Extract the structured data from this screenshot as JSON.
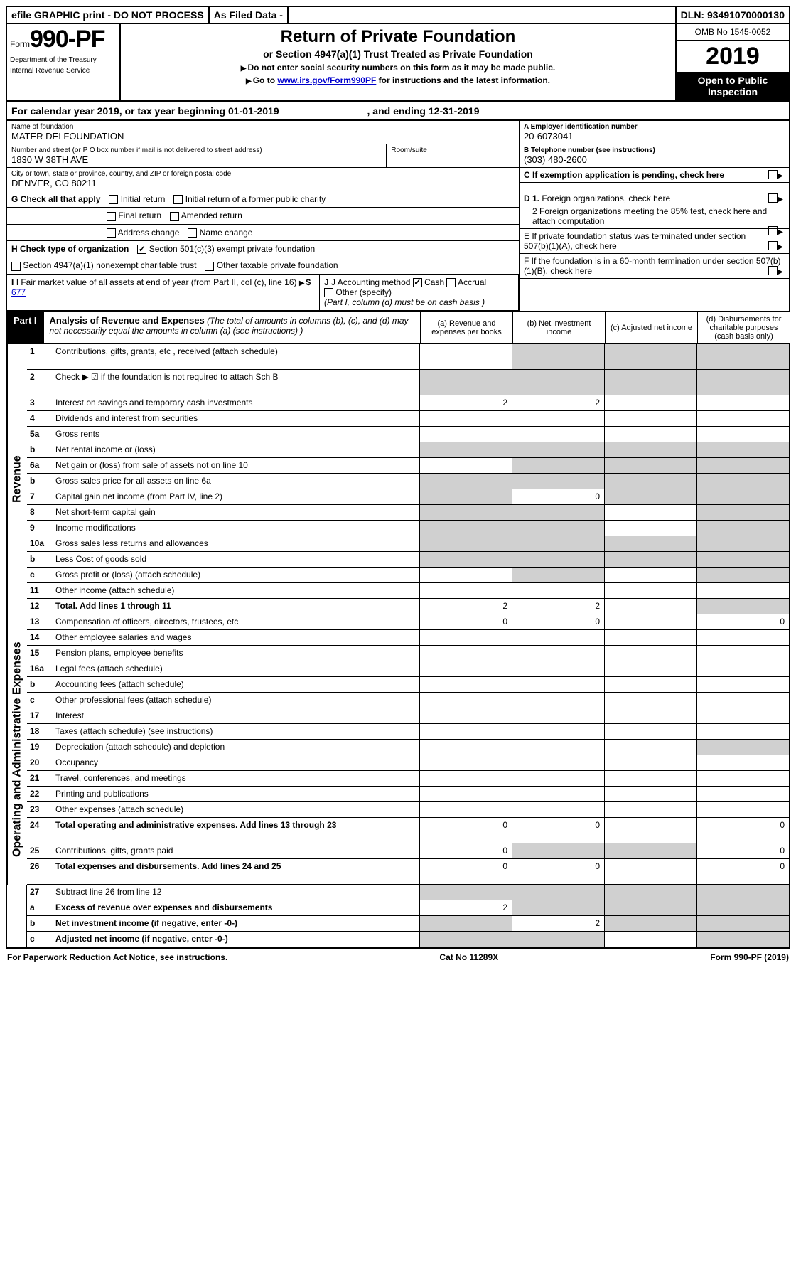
{
  "topbar": {
    "efile": "efile GRAPHIC print - DO NOT PROCESS",
    "asfiled": "As Filed Data -",
    "dln_label": "DLN:",
    "dln": "93491070000130"
  },
  "header": {
    "form_prefix": "Form",
    "form_number": "990-PF",
    "dept1": "Department of the Treasury",
    "dept2": "Internal Revenue Service",
    "title": "Return of Private Foundation",
    "subtitle": "or Section 4947(a)(1) Trust Treated as Private Foundation",
    "instr1": "Do not enter social security numbers on this form as it may be made public.",
    "instr2_prefix": "Go to ",
    "instr2_link": "www.irs.gov/Form990PF",
    "instr2_suffix": " for instructions and the latest information.",
    "omb": "OMB No 1545-0052",
    "year": "2019",
    "open": "Open to Public Inspection"
  },
  "calyear": {
    "text": "For calendar year 2019, or tax year beginning 01-01-2019",
    "mid": ", and ending ",
    "end": "12-31-2019"
  },
  "entity": {
    "name_lbl": "Name of foundation",
    "name": "MATER DEI FOUNDATION",
    "addr_lbl": "Number and street (or P O  box number if mail is not delivered to street address)",
    "addr": "1830 W 38TH AVE",
    "room_lbl": "Room/suite",
    "city_lbl": "City or town, state or province, country, and ZIP or foreign postal code",
    "city": "DENVER, CO  80211",
    "ein_lbl": "A Employer identification number",
    "ein": "20-6073041",
    "tel_lbl": "B Telephone number (see instructions)",
    "tel": "(303) 480-2600",
    "c_lbl": "C If exemption application is pending, check here"
  },
  "checks": {
    "g_lbl": "G Check all that apply",
    "g1": "Initial return",
    "g2": "Initial return of a former public charity",
    "g3": "Final return",
    "g4": "Amended return",
    "g5": "Address change",
    "g6": "Name change",
    "h_lbl": "H Check type of organization",
    "h1": "Section 501(c)(3) exempt private foundation",
    "h2": "Section 4947(a)(1) nonexempt charitable trust",
    "h3": "Other taxable private foundation",
    "i_lbl": "I Fair market value of all assets at end of year (from Part II, col  (c), line 16) ",
    "i_prefix": "$",
    "i_val": "677",
    "j_lbl": "J Accounting method",
    "j1": "Cash",
    "j2": "Accrual",
    "j3": "Other (specify)",
    "j_note": "(Part I, column (d) must be on cash basis )",
    "d_lbl": "D 1. Foreign organizations, check here",
    "d2": "2  Foreign organizations meeting the 85% test, check here and attach computation",
    "e_lbl": "E  If private foundation status was terminated under section 507(b)(1)(A), check here",
    "f_lbl": "F  If the foundation is in a 60-month termination under section 507(b)(1)(B), check here"
  },
  "part1": {
    "label": "Part I",
    "title": "Analysis of Revenue and Expenses",
    "note": "(The total of amounts in columns (b), (c), and (d) may not necessarily equal the amounts in column (a) (see instructions) )",
    "col_a": "(a)   Revenue and expenses per books",
    "col_b": "(b)  Net investment income",
    "col_c": "(c)  Adjusted net income",
    "col_d": "(d)  Disbursements for charitable purposes (cash basis only)"
  },
  "revenue_label": "Revenue",
  "expenses_label": "Operating and Administrative Expenses",
  "rows": {
    "r1": {
      "n": "1",
      "d": "Contributions, gifts, grants, etc , received (attach schedule)"
    },
    "r2": {
      "n": "2",
      "d": "Check ▶ ☑ if the foundation is not required to attach Sch  B"
    },
    "r3": {
      "n": "3",
      "d": "Interest on savings and temporary cash investments",
      "a": "2",
      "b": "2"
    },
    "r4": {
      "n": "4",
      "d": "Dividends and interest from securities"
    },
    "r5a": {
      "n": "5a",
      "d": "Gross rents"
    },
    "r5b": {
      "n": "b",
      "d": "Net rental income or (loss)"
    },
    "r6a": {
      "n": "6a",
      "d": "Net gain or (loss) from sale of assets not on line 10"
    },
    "r6b": {
      "n": "b",
      "d": "Gross sales price for all assets on line 6a"
    },
    "r7": {
      "n": "7",
      "d": "Capital gain net income (from Part IV, line 2)",
      "b": "0"
    },
    "r8": {
      "n": "8",
      "d": "Net short-term capital gain"
    },
    "r9": {
      "n": "9",
      "d": "Income modifications"
    },
    "r10a": {
      "n": "10a",
      "d": "Gross sales less returns and allowances"
    },
    "r10b": {
      "n": "b",
      "d": "Less  Cost of goods sold"
    },
    "r10c": {
      "n": "c",
      "d": "Gross profit or (loss) (attach schedule)"
    },
    "r11": {
      "n": "11",
      "d": "Other income (attach schedule)"
    },
    "r12": {
      "n": "12",
      "d": "Total. Add lines 1 through 11",
      "a": "2",
      "b": "2"
    },
    "r13": {
      "n": "13",
      "d": "Compensation of officers, directors, trustees, etc",
      "a": "0",
      "b": "0",
      "dd": "0"
    },
    "r14": {
      "n": "14",
      "d": "Other employee salaries and wages"
    },
    "r15": {
      "n": "15",
      "d": "Pension plans, employee benefits"
    },
    "r16a": {
      "n": "16a",
      "d": "Legal fees (attach schedule)"
    },
    "r16b": {
      "n": "b",
      "d": "Accounting fees (attach schedule)"
    },
    "r16c": {
      "n": "c",
      "d": "Other professional fees (attach schedule)"
    },
    "r17": {
      "n": "17",
      "d": "Interest"
    },
    "r18": {
      "n": "18",
      "d": "Taxes (attach schedule) (see instructions)"
    },
    "r19": {
      "n": "19",
      "d": "Depreciation (attach schedule) and depletion"
    },
    "r20": {
      "n": "20",
      "d": "Occupancy"
    },
    "r21": {
      "n": "21",
      "d": "Travel, conferences, and meetings"
    },
    "r22": {
      "n": "22",
      "d": "Printing and publications"
    },
    "r23": {
      "n": "23",
      "d": "Other expenses (attach schedule)"
    },
    "r24": {
      "n": "24",
      "d": "Total operating and administrative expenses. Add lines 13 through 23",
      "a": "0",
      "b": "0",
      "dd": "0"
    },
    "r25": {
      "n": "25",
      "d": "Contributions, gifts, grants paid",
      "a": "0",
      "dd": "0"
    },
    "r26": {
      "n": "26",
      "d": "Total expenses and disbursements. Add lines 24 and 25",
      "a": "0",
      "b": "0",
      "dd": "0"
    },
    "r27": {
      "n": "27",
      "d": "Subtract line 26 from line 12"
    },
    "r27a": {
      "n": "a",
      "d": "Excess of revenue over expenses and disbursements",
      "a": "2"
    },
    "r27b": {
      "n": "b",
      "d": "Net investment income (if negative, enter -0-)",
      "b": "2"
    },
    "r27c": {
      "n": "c",
      "d": "Adjusted net income (if negative, enter -0-)"
    }
  },
  "footer": {
    "left": "For Paperwork Reduction Act Notice, see instructions.",
    "mid": "Cat  No  11289X",
    "right": "Form 990-PF (2019)"
  }
}
